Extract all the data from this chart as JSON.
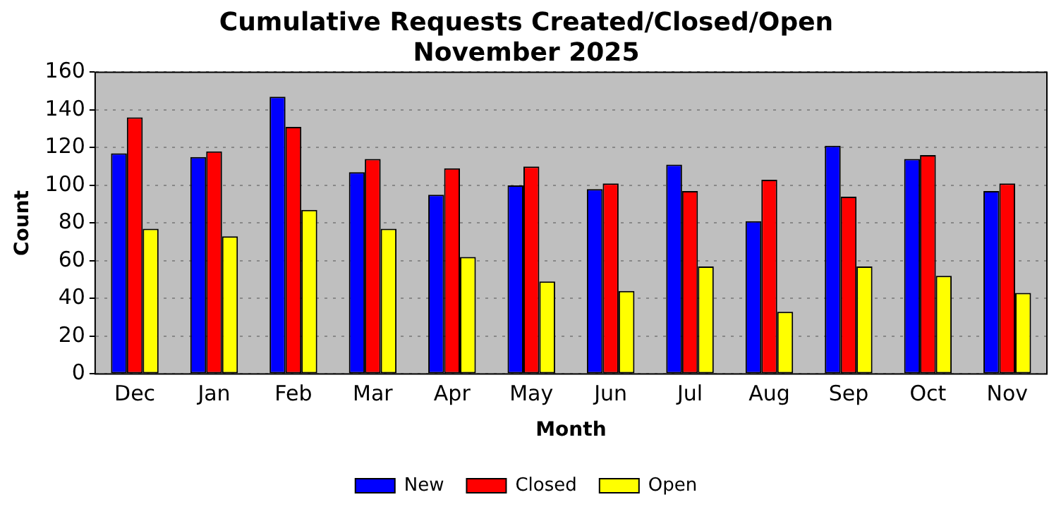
{
  "chart_data": {
    "type": "bar",
    "title": "Cumulative Requests Created/Closed/Open",
    "subtitle": "November 2025",
    "xlabel": "Month",
    "ylabel": "Count",
    "categories": [
      "Dec",
      "Jan",
      "Feb",
      "Mar",
      "Apr",
      "May",
      "Jun",
      "Jul",
      "Aug",
      "Sep",
      "Oct",
      "Nov"
    ],
    "series": [
      {
        "name": "New",
        "color": "#0000ff",
        "values": [
          117,
          115,
          147,
          107,
          95,
          100,
          98,
          111,
          81,
          121,
          114,
          97
        ]
      },
      {
        "name": "Closed",
        "color": "#ff0000",
        "values": [
          136,
          118,
          131,
          114,
          109,
          110,
          101,
          97,
          103,
          94,
          116,
          101
        ]
      },
      {
        "name": "Open",
        "color": "#ffff00",
        "values": [
          77,
          73,
          87,
          77,
          62,
          49,
          44,
          57,
          33,
          57,
          52,
          43
        ]
      }
    ],
    "ylim": [
      0,
      160
    ],
    "yticks": [
      0,
      20,
      40,
      60,
      80,
      100,
      120,
      140,
      160
    ],
    "grid": "y",
    "legend": "bottom"
  }
}
